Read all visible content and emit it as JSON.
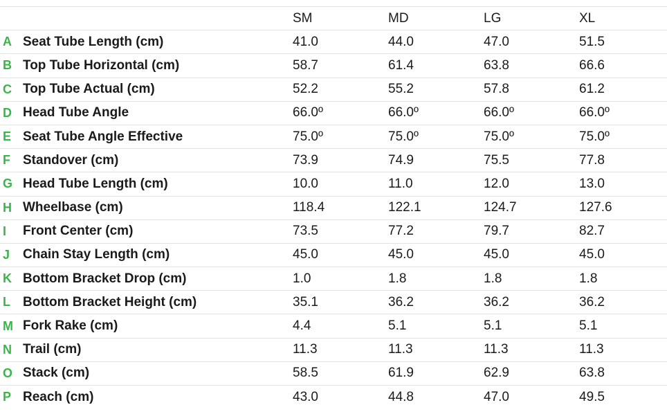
{
  "header": {
    "sizes": [
      "SM",
      "MD",
      "LG",
      "XL"
    ]
  },
  "rows": [
    {
      "letter": "A",
      "name": "Seat Tube Length (cm)",
      "values": [
        "41.0",
        "44.0",
        "47.0",
        "51.5"
      ]
    },
    {
      "letter": "B",
      "name": "Top Tube Horizontal (cm)",
      "values": [
        "58.7",
        "61.4",
        "63.8",
        "66.6"
      ]
    },
    {
      "letter": "C",
      "name": "Top Tube Actual (cm)",
      "values": [
        "52.2",
        "55.2",
        "57.8",
        "61.2"
      ]
    },
    {
      "letter": "D",
      "name": "Head Tube Angle",
      "values": [
        "66.0º",
        "66.0º",
        "66.0º",
        "66.0º"
      ]
    },
    {
      "letter": "E",
      "name": "Seat Tube Angle Effective",
      "values": [
        "75.0º",
        "75.0º",
        "75.0º",
        "75.0º"
      ]
    },
    {
      "letter": "F",
      "name": "Standover (cm)",
      "values": [
        "73.9",
        "74.9",
        "75.5",
        "77.8"
      ]
    },
    {
      "letter": "G",
      "name": "Head Tube Length (cm)",
      "values": [
        "10.0",
        "11.0",
        "12.0",
        "13.0"
      ]
    },
    {
      "letter": "H",
      "name": "Wheelbase (cm)",
      "values": [
        "118.4",
        "122.1",
        "124.7",
        "127.6"
      ]
    },
    {
      "letter": "I",
      "name": "Front Center (cm)",
      "values": [
        "73.5",
        "77.2",
        "79.7",
        "82.7"
      ]
    },
    {
      "letter": "J",
      "name": "Chain Stay Length (cm)",
      "values": [
        "45.0",
        "45.0",
        "45.0",
        "45.0"
      ]
    },
    {
      "letter": "K",
      "name": "Bottom Bracket Drop (cm)",
      "values": [
        "1.0",
        "1.8",
        "1.8",
        "1.8"
      ]
    },
    {
      "letter": "L",
      "name": "Bottom Bracket Height (cm)",
      "values": [
        "35.1",
        "36.2",
        "36.2",
        "36.2"
      ]
    },
    {
      "letter": "M",
      "name": "Fork Rake (cm)",
      "values": [
        "4.4",
        "5.1",
        "5.1",
        "5.1"
      ]
    },
    {
      "letter": "N",
      "name": "Trail (cm)",
      "values": [
        "11.3",
        "11.3",
        "11.3",
        "11.3"
      ]
    },
    {
      "letter": "O",
      "name": "Stack (cm)",
      "values": [
        "58.5",
        "61.9",
        "62.9",
        "63.8"
      ]
    },
    {
      "letter": "P",
      "name": "Reach (cm)",
      "values": [
        "43.0",
        "44.8",
        "47.0",
        "49.5"
      ]
    }
  ],
  "colors": {
    "letter": "#3ab54a",
    "divider": "#e2e2e2",
    "text": "#1a1a1a"
  }
}
